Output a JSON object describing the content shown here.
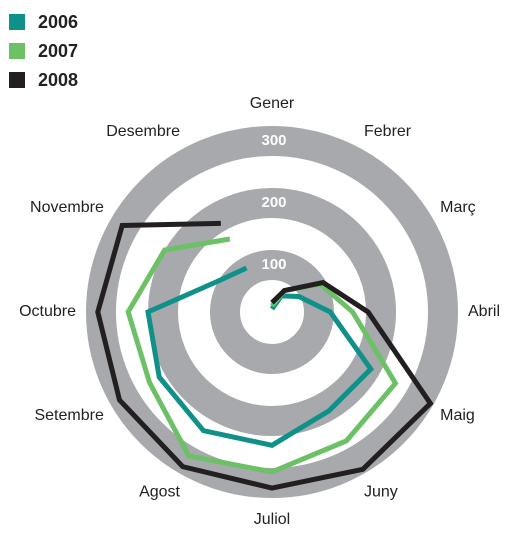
{
  "chart_data": {
    "type": "radar",
    "categories": [
      "Gener",
      "Febrer",
      "Març",
      "Abril",
      "Maig",
      "Juny",
      "Juliol",
      "Agost",
      "Setembre",
      "Octubre",
      "Novembre",
      "Desembre"
    ],
    "series": [
      {
        "name": "2006",
        "color": "#0f918a",
        "values": [
          5,
          30,
          50,
          94,
          184,
          184,
          215,
          221,
          210,
          200,
          100,
          82
        ]
      },
      {
        "name": "2007",
        "color": "#6cc167",
        "values": [
          10,
          40,
          90,
          130,
          230,
          240,
          258,
          268,
          228,
          232,
          200,
          136
        ]
      },
      {
        "name": "2008",
        "color": "#231f20",
        "values": [
          15,
          40,
          95,
          155,
          295,
          293,
          284,
          288,
          284,
          281,
          279,
          165
        ]
      }
    ],
    "rlim": [
      0,
      300
    ],
    "rticks": [
      100,
      200,
      300
    ]
  }
}
